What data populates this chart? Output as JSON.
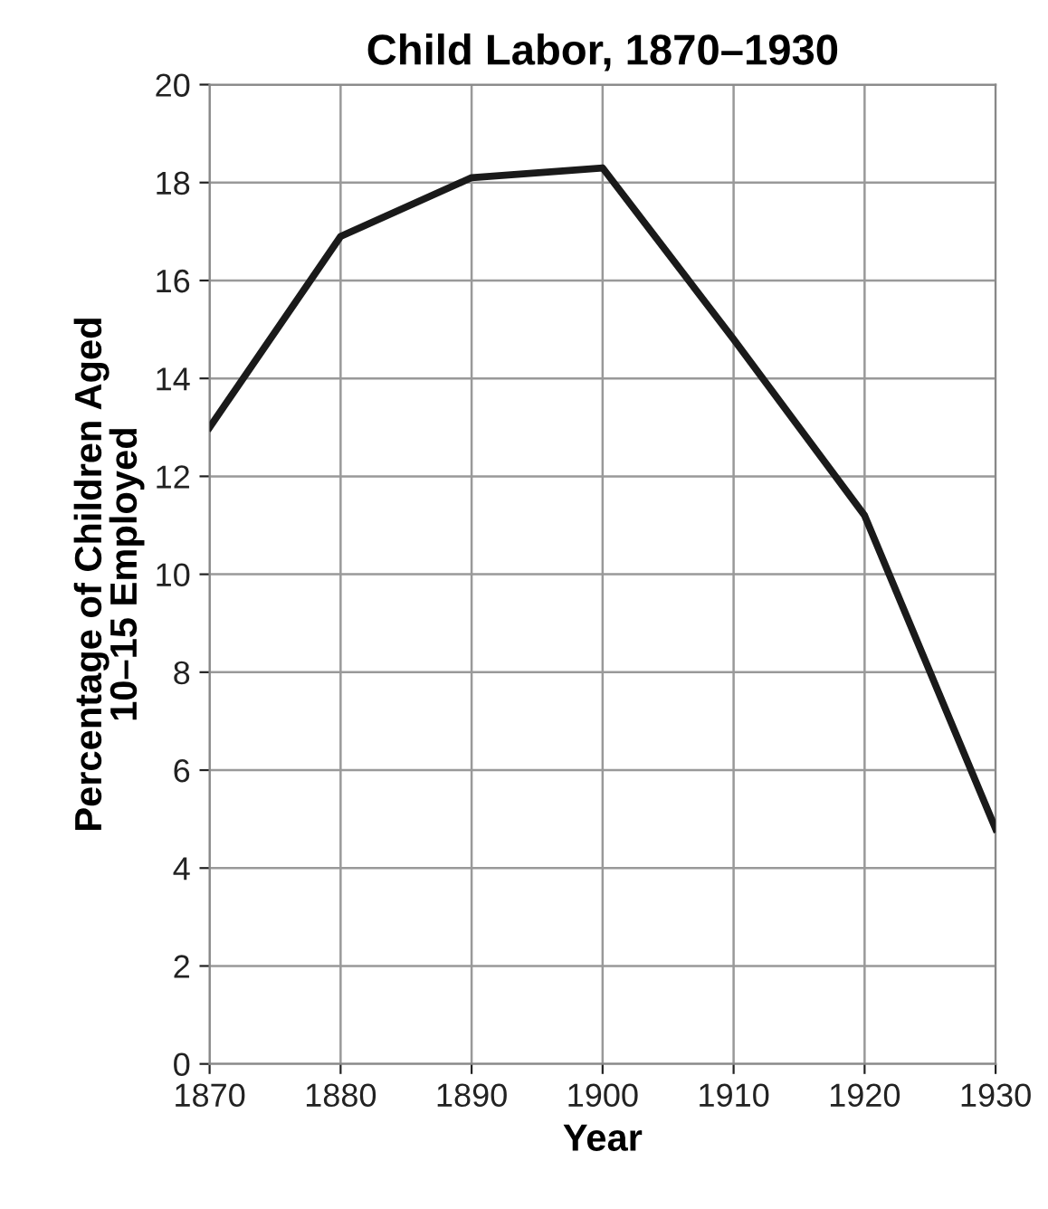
{
  "chart_data": {
    "type": "line",
    "title": "Child Labor, 1870–1930",
    "xlabel": "Year",
    "ylabel": "Percentage of Children Aged\n10–15 Employed",
    "x": [
      1870,
      1880,
      1890,
      1900,
      1910,
      1920,
      1930
    ],
    "series": [
      {
        "color": "#1a1a1a",
        "values": [
          13.0,
          16.9,
          18.1,
          18.3,
          14.8,
          11.2,
          4.8
        ]
      }
    ],
    "xlim": [
      1870,
      1930
    ],
    "xticks": [
      1870,
      1880,
      1890,
      1900,
      1910,
      1920,
      1930
    ],
    "ylim": [
      0,
      20
    ],
    "yticks": [
      0,
      2,
      4,
      6,
      8,
      10,
      12,
      14,
      16,
      18,
      20
    ],
    "grid": true,
    "legend": false,
    "marker": "none",
    "line_style": "solid"
  }
}
